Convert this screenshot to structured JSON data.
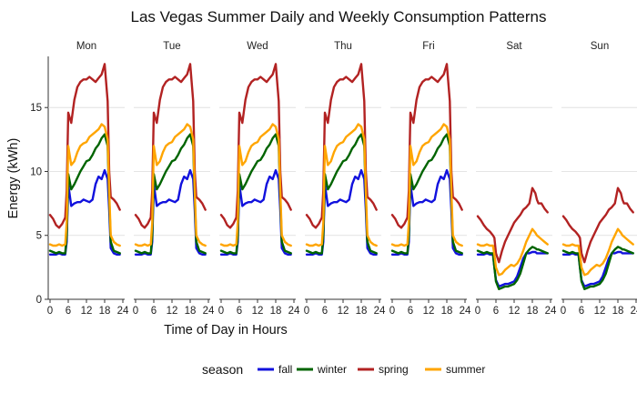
{
  "chart_data": {
    "type": "line",
    "title": "Las Vegas Summer Daily and Weekly Consumption Patterns",
    "xlabel": "Time of Day in Hours",
    "ylabel": "Energy (kWh)",
    "facets": [
      "Mon",
      "Tue",
      "Wed",
      "Thu",
      "Fri",
      "Sat",
      "Sun"
    ],
    "x_ticks": [
      0,
      6,
      12,
      18,
      24
    ],
    "y_ticks": [
      0,
      5,
      10,
      15
    ],
    "xlim": [
      0,
      24
    ],
    "ylim": [
      0,
      19
    ],
    "grid": "horizontal",
    "legend": {
      "title": "season",
      "position": "bottom"
    },
    "hours": [
      0,
      1,
      2,
      3,
      4,
      5,
      5.5,
      6,
      7,
      8,
      9,
      10,
      11,
      12,
      13,
      14,
      15,
      16,
      17,
      18,
      19,
      19.5,
      20,
      21,
      22,
      23
    ],
    "colors": {
      "fall": "#1111dd",
      "winter": "#006400",
      "spring": "#b22222",
      "summer": "#ffa500"
    },
    "series": [
      {
        "name": "fall",
        "weekday": [
          3.5,
          3.5,
          3.5,
          3.6,
          3.5,
          3.5,
          4.5,
          9.0,
          7.3,
          7.5,
          7.6,
          7.6,
          7.8,
          7.7,
          7.6,
          7.8,
          9.0,
          9.6,
          9.4,
          10.1,
          9.4,
          7.0,
          4.0,
          3.6,
          3.5,
          3.5
        ],
        "weekend": [
          3.5,
          3.5,
          3.5,
          3.6,
          3.5,
          3.5,
          2.5,
          1.5,
          1.0,
          1.1,
          1.2,
          1.2,
          1.3,
          1.4,
          1.8,
          2.5,
          3.2,
          3.6,
          3.6,
          3.7,
          3.7,
          3.6,
          3.6,
          3.6,
          3.6,
          3.6
        ]
      },
      {
        "name": "winter",
        "weekday": [
          3.8,
          3.7,
          3.6,
          3.7,
          3.6,
          3.6,
          5.0,
          9.8,
          8.6,
          9.0,
          9.5,
          10.0,
          10.4,
          10.8,
          10.9,
          11.3,
          11.8,
          12.1,
          12.6,
          12.9,
          12.0,
          8.0,
          4.5,
          3.8,
          3.7,
          3.6
        ],
        "weekend": [
          3.8,
          3.7,
          3.6,
          3.7,
          3.6,
          3.6,
          2.5,
          1.4,
          0.8,
          0.9,
          1.0,
          1.0,
          1.1,
          1.2,
          1.5,
          2.0,
          2.8,
          3.6,
          3.9,
          4.1,
          4.0,
          3.9,
          3.9,
          3.8,
          3.7,
          3.6
        ]
      },
      {
        "name": "spring",
        "weekday": [
          6.6,
          6.3,
          5.8,
          5.6,
          5.9,
          6.4,
          8.5,
          14.6,
          13.8,
          15.6,
          16.6,
          17.0,
          17.2,
          17.2,
          17.4,
          17.2,
          17.0,
          17.3,
          17.6,
          18.4,
          15.5,
          10.0,
          8.0,
          7.8,
          7.5,
          7.0
        ],
        "weekend": [
          6.5,
          6.2,
          5.8,
          5.5,
          5.3,
          5.0,
          4.8,
          3.6,
          2.9,
          3.8,
          4.5,
          5.0,
          5.5,
          6.0,
          6.3,
          6.6,
          7.0,
          7.2,
          7.5,
          8.7,
          8.3,
          7.8,
          7.5,
          7.5,
          7.1,
          6.8
        ]
      },
      {
        "name": "summer",
        "weekday": [
          4.3,
          4.2,
          4.2,
          4.3,
          4.2,
          4.3,
          6.0,
          12.0,
          10.5,
          10.8,
          11.5,
          12.0,
          12.2,
          12.3,
          12.7,
          12.9,
          13.1,
          13.3,
          13.7,
          13.5,
          12.5,
          8.5,
          5.0,
          4.5,
          4.3,
          4.2
        ],
        "weekend": [
          4.3,
          4.2,
          4.2,
          4.3,
          4.2,
          4.2,
          3.5,
          2.5,
          1.9,
          2.0,
          2.3,
          2.5,
          2.7,
          2.6,
          2.8,
          3.2,
          3.8,
          4.5,
          5.0,
          5.5,
          5.2,
          5.0,
          4.9,
          4.7,
          4.5,
          4.3
        ]
      }
    ]
  }
}
